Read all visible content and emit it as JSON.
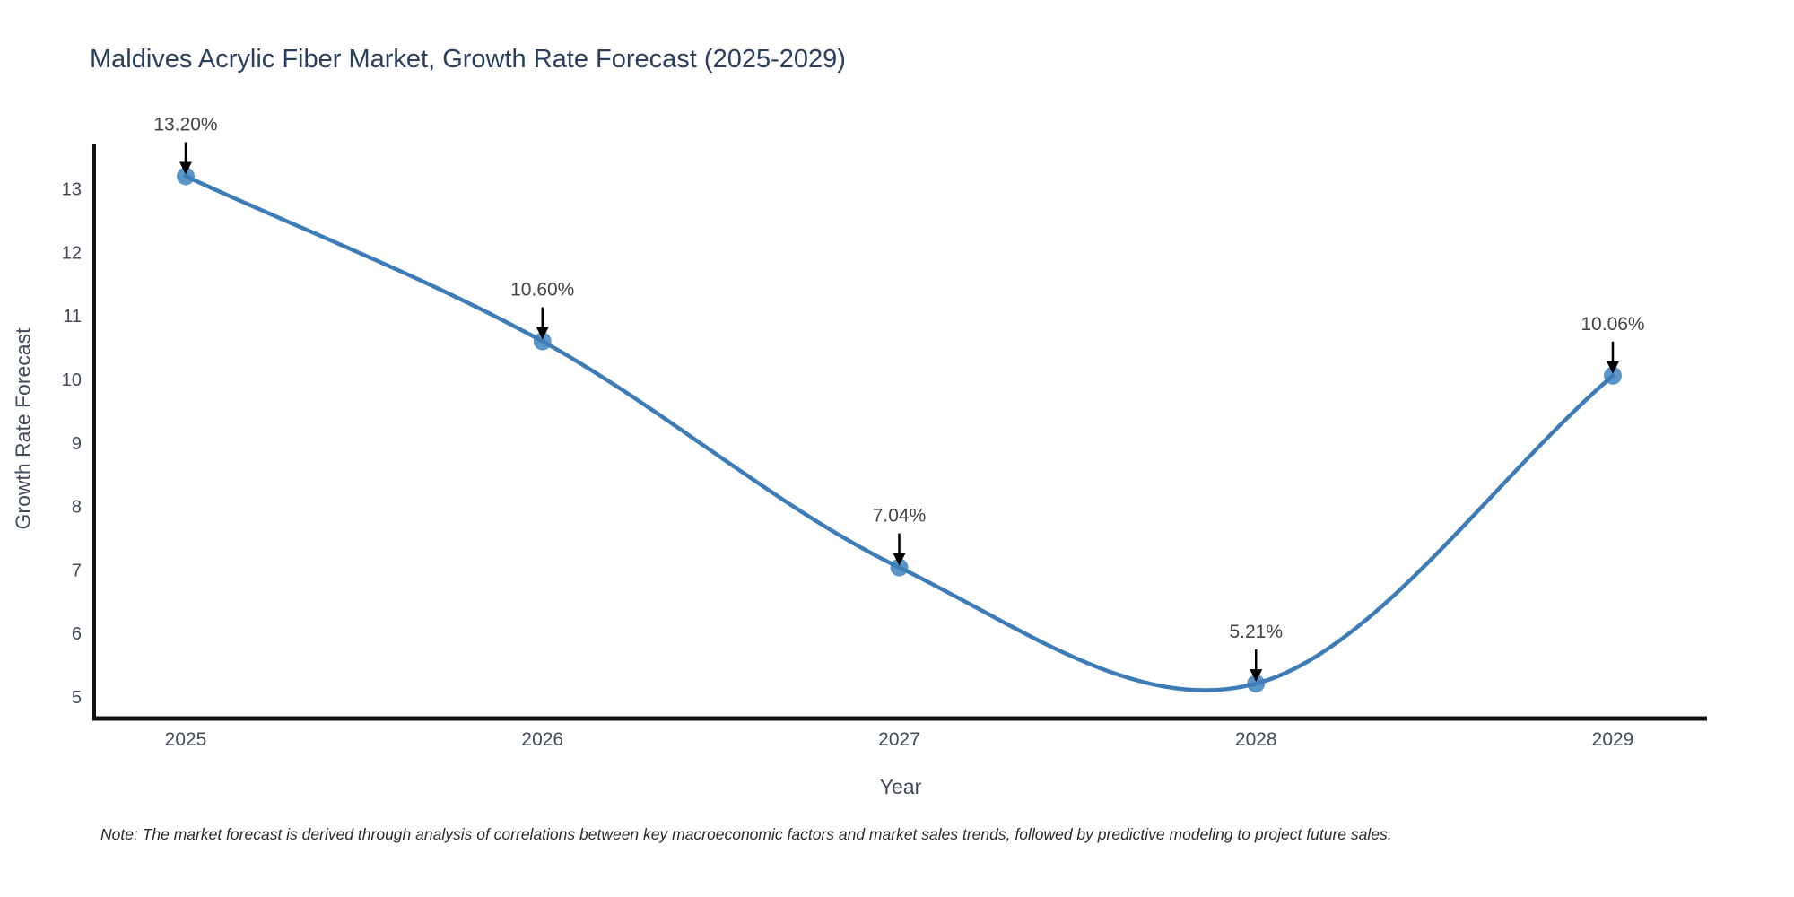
{
  "chart_data": {
    "type": "line",
    "title": "Maldives Acrylic Fiber Market, Growth Rate Forecast (2025-2029)",
    "xlabel": "Year",
    "ylabel": "Growth Rate Forecast",
    "categories": [
      "2025",
      "2026",
      "2027",
      "2028",
      "2029"
    ],
    "series": [
      {
        "name": "Growth Rate Forecast",
        "values": [
          13.2,
          10.6,
          7.04,
          5.21,
          10.06
        ],
        "point_labels": [
          "13.20%",
          "10.60%",
          "7.04%",
          "5.21%",
          "10.06%"
        ]
      }
    ],
    "yticks": [
      5,
      6,
      7,
      8,
      9,
      10,
      11,
      12,
      13
    ],
    "ylim": [
      4.66,
      13.71
    ],
    "grid": false,
    "legend": "none",
    "line_shape": "spline",
    "annotations": "value labels with down arrows above each point",
    "colors": {
      "line": "#3e7cb8",
      "marker": "#4a89c2",
      "axis": "#111111",
      "title": "#2a3f5f",
      "tick_label": "#414b5a",
      "annotation_text": "#444444",
      "annotation_arrow": "#000000"
    }
  },
  "note": "Note: The market forecast is derived through analysis of correlations between key macroeconomic factors and market sales trends, followed by predictive modeling to project future sales."
}
